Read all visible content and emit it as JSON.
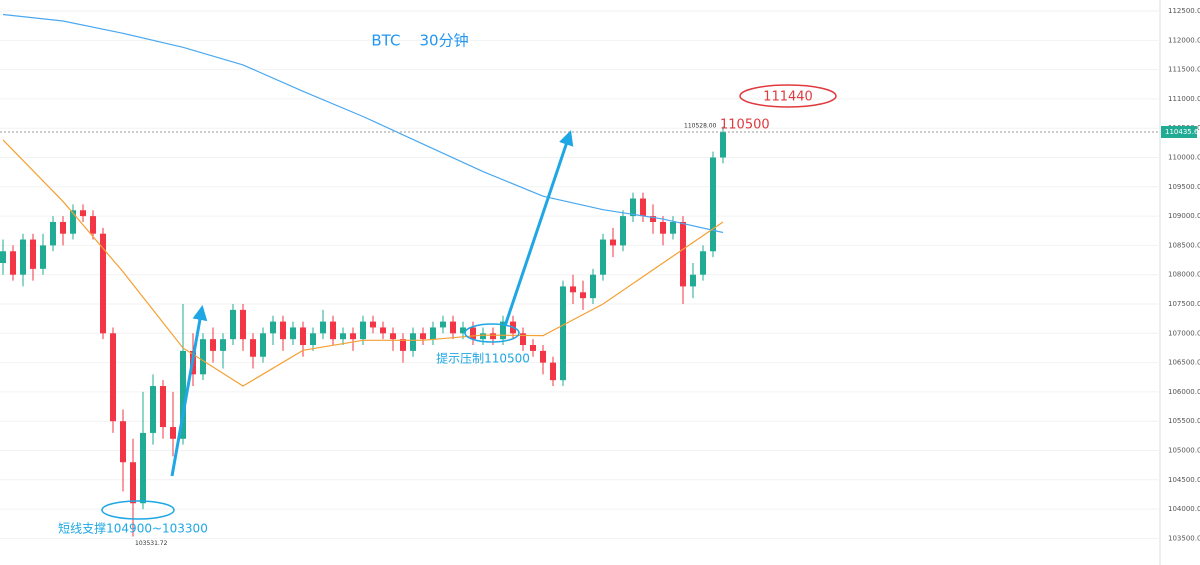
{
  "chart_data": {
    "type": "candlestick",
    "title": "BTC    30分钟",
    "up_color": "#22ab94",
    "down_color": "#f23645",
    "candles": [
      [
        108200,
        108600,
        108000,
        108400
      ],
      [
        108400,
        108500,
        107900,
        108000
      ],
      [
        108000,
        108700,
        107800,
        108600
      ],
      [
        108600,
        108700,
        107900,
        108100
      ],
      [
        108100,
        108700,
        108000,
        108500
      ],
      [
        108500,
        109000,
        108400,
        108900
      ],
      [
        108900,
        109000,
        108500,
        108700
      ],
      [
        108700,
        109200,
        108600,
        109100
      ],
      [
        109100,
        109200,
        108900,
        109000
      ],
      [
        109000,
        109100,
        108600,
        108700
      ],
      [
        108700,
        108800,
        106900,
        107000
      ],
      [
        107000,
        107100,
        105300,
        105500
      ],
      [
        105500,
        105700,
        104300,
        104800
      ],
      [
        104800,
        105200,
        103531.72,
        104100
      ],
      [
        104100,
        106000,
        104000,
        105300
      ],
      [
        105300,
        106300,
        105100,
        106100
      ],
      [
        106100,
        106200,
        105200,
        105400
      ],
      [
        105400,
        106000,
        104900,
        105200
      ],
      [
        105200,
        107500,
        105100,
        106700
      ],
      [
        106700,
        107000,
        106100,
        106300
      ],
      [
        106300,
        107000,
        106200,
        106900
      ],
      [
        106900,
        107100,
        106500,
        106700
      ],
      [
        106700,
        107000,
        106400,
        106900
      ],
      [
        106900,
        107500,
        106800,
        107400
      ],
      [
        107400,
        107500,
        106700,
        106900
      ],
      [
        106900,
        107000,
        106400,
        106600
      ],
      [
        106600,
        107100,
        106500,
        107000
      ],
      [
        107000,
        107300,
        106800,
        107200
      ],
      [
        107200,
        107300,
        106700,
        106900
      ],
      [
        106900,
        107200,
        106800,
        107100
      ],
      [
        107100,
        107200,
        106600,
        106800
      ],
      [
        106800,
        107100,
        106700,
        107000
      ],
      [
        107000,
        107400,
        106900,
        107200
      ],
      [
        107200,
        107300,
        106800,
        106900
      ],
      [
        106900,
        107100,
        106800,
        107000
      ],
      [
        107000,
        107100,
        106700,
        106900
      ],
      [
        106900,
        107300,
        106800,
        107200
      ],
      [
        107200,
        107300,
        107000,
        107100
      ],
      [
        107100,
        107200,
        106900,
        107000
      ],
      [
        107000,
        107100,
        106700,
        106900
      ],
      [
        106900,
        107000,
        106500,
        106700
      ],
      [
        106700,
        107100,
        106600,
        107000
      ],
      [
        107000,
        107100,
        106800,
        106900
      ],
      [
        106900,
        107200,
        106800,
        107100
      ],
      [
        107100,
        107300,
        107000,
        107200
      ],
      [
        107200,
        107300,
        106900,
        107000
      ],
      [
        107000,
        107200,
        106900,
        107100
      ],
      [
        107100,
        107200,
        106800,
        106900
      ],
      [
        106900,
        107100,
        106800,
        107000
      ],
      [
        107000,
        107100,
        106800,
        106900
      ],
      [
        106900,
        107300,
        106800,
        107200
      ],
      [
        107200,
        107300,
        106900,
        107000
      ],
      [
        107000,
        107100,
        106700,
        106800
      ],
      [
        106800,
        106900,
        106600,
        106700
      ],
      [
        106700,
        106800,
        106300,
        106500
      ],
      [
        106500,
        106600,
        106100,
        106200
      ],
      [
        106200,
        107900,
        106100,
        107800
      ],
      [
        107800,
        108000,
        107500,
        107700
      ],
      [
        107700,
        107900,
        107400,
        107600
      ],
      [
        107600,
        108100,
        107500,
        108000
      ],
      [
        108000,
        108700,
        107900,
        108600
      ],
      [
        108600,
        108800,
        108300,
        108500
      ],
      [
        108500,
        109100,
        108400,
        109000
      ],
      [
        109000,
        109400,
        108900,
        109300
      ],
      [
        109300,
        109400,
        108900,
        109000
      ],
      [
        109000,
        109200,
        108700,
        108900
      ],
      [
        108900,
        109000,
        108500,
        108700
      ],
      [
        108700,
        109000,
        108600,
        108900
      ],
      [
        108900,
        109000,
        107500,
        107800
      ],
      [
        107800,
        108200,
        107600,
        108000
      ],
      [
        108000,
        108500,
        107900,
        108400
      ],
      [
        108400,
        110100,
        108300,
        110000
      ],
      [
        110000,
        110528,
        109900,
        110435.65
      ]
    ],
    "series": [
      {
        "color": "#4aa8f0",
        "x": [
          0,
          6,
          12,
          18,
          24,
          30,
          36,
          42,
          48,
          54,
          60,
          66,
          72
        ],
        "values": [
          112440,
          112330,
          112120,
          111880,
          111580,
          111130,
          110700,
          110230,
          109760,
          109340,
          109110,
          108950,
          108720
        ]
      },
      {
        "color": "#f5a033",
        "x": [
          0,
          6,
          12,
          18,
          24,
          30,
          36,
          42,
          48,
          54,
          60,
          66,
          72
        ],
        "values": [
          110300,
          109250,
          108050,
          106750,
          106100,
          106710,
          106880,
          106880,
          106970,
          106960,
          107500,
          108200,
          108900
        ]
      }
    ],
    "ylim": [
      103046,
      112688
    ],
    "yticks": [
      {
        "value": 103500,
        "label": "103500.00"
      },
      {
        "value": 104000,
        "label": "104000.00"
      },
      {
        "value": 104500,
        "label": "104500.00"
      },
      {
        "value": 105000,
        "label": "105000.00"
      },
      {
        "value": 105500,
        "label": "105500.00"
      },
      {
        "value": 106000,
        "label": "106000.00"
      },
      {
        "value": 106500,
        "label": "106500.00"
      },
      {
        "value": 107000,
        "label": "107000.00"
      },
      {
        "value": 107500,
        "label": "107500.00"
      },
      {
        "value": 108000,
        "label": "108000.00"
      },
      {
        "value": 108500,
        "label": "108500.00"
      },
      {
        "value": 109000,
        "label": "109000.00"
      },
      {
        "value": 109500,
        "label": "109500.00"
      },
      {
        "value": 110000,
        "label": "110000.00"
      },
      {
        "value": 110500,
        "label": "110500.00"
      },
      {
        "value": 111000,
        "label": "111000.00"
      },
      {
        "value": 111500,
        "label": "111500.00"
      },
      {
        "value": 112000,
        "label": "112000.00"
      },
      {
        "value": 112500,
        "label": "112500.00"
      }
    ],
    "grid": true,
    "annotations": [
      "111440",
      "110500",
      "110528.00",
      "短线支撑104900~103300",
      "提示压制110500"
    ]
  }
}
